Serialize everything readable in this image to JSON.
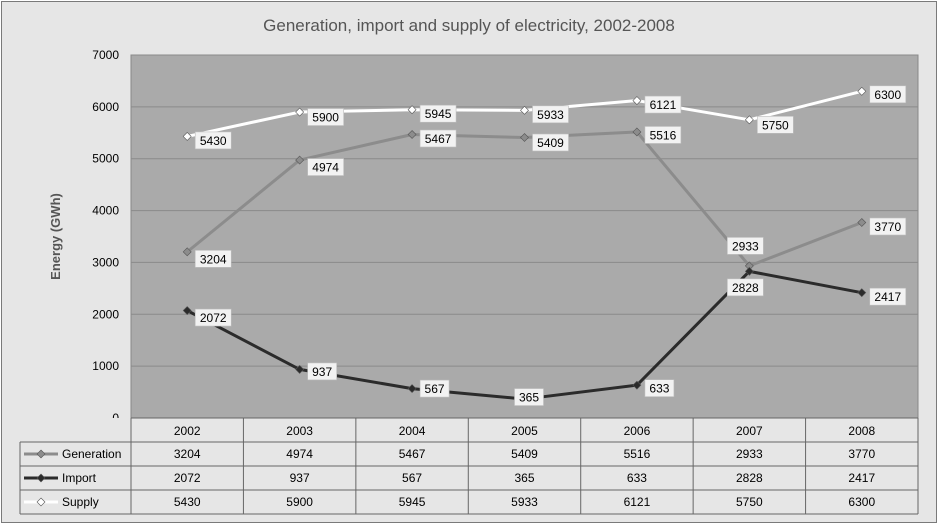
{
  "chart_data": {
    "type": "line",
    "title": "Generation, import and supply of electricity, 2002-2008",
    "ylabel": "Energy (GWh)",
    "xlabel": "",
    "ylim": [
      0,
      7000
    ],
    "yticks": [
      0,
      1000,
      2000,
      3000,
      4000,
      5000,
      6000,
      7000
    ],
    "grid": true,
    "legend": "data-table-below",
    "categories": [
      "2002",
      "2003",
      "2004",
      "2005",
      "2006",
      "2007",
      "2008"
    ],
    "series": [
      {
        "name": "Generation",
        "color": "#8c8c8c",
        "values": [
          3204,
          4974,
          5467,
          5409,
          5516,
          2933,
          3770
        ]
      },
      {
        "name": "Import",
        "color": "#2b2b2b",
        "values": [
          2072,
          937,
          567,
          365,
          633,
          2828,
          2417
        ]
      },
      {
        "name": "Supply",
        "color": "#ffffff",
        "values": [
          5430,
          5900,
          5945,
          5933,
          6121,
          5750,
          6300
        ]
      }
    ]
  }
}
